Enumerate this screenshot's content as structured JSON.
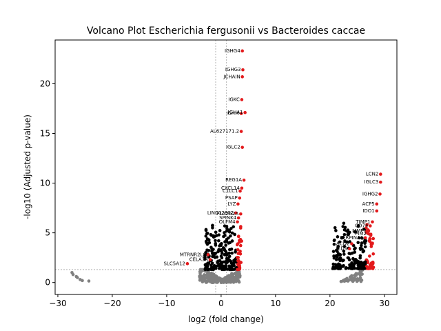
{
  "chart_data": {
    "type": "scatter",
    "title": "Volcano Plot Escherichia fergusonii vs Bacteroides caccae",
    "xlabel": "log2 (fold change)",
    "ylabel": "-log10 (Adjusted p-value)",
    "xlim": [
      -30.5,
      32.3
    ],
    "ylim": [
      -1.2,
      24.4
    ],
    "xticks": [
      -30,
      -20,
      -10,
      0,
      10,
      20,
      30
    ],
    "yticks": [
      0,
      5,
      10,
      15,
      20
    ],
    "grid": false,
    "threshold_lines": {
      "x": [
        -1,
        1
      ],
      "y": [
        1.3
      ]
    },
    "colors": {
      "significant": "#e31a1c",
      "not_significant": "#808080",
      "threshold": "#808080"
    },
    "significant_labeled": [
      {
        "label": "IGHG4",
        "x": 3.9,
        "y": 23.3
      },
      {
        "label": "IGHG3",
        "x": 4.0,
        "y": 21.4
      },
      {
        "label": "JCHAIN",
        "x": 3.9,
        "y": 20.7
      },
      {
        "label": "IGKC",
        "x": 3.8,
        "y": 18.4
      },
      {
        "label": "IGHA1",
        "x": 4.4,
        "y": 17.1
      },
      {
        "label": "IGHM",
        "x": 3.7,
        "y": 17.0
      },
      {
        "label": "AL627171.2",
        "x": 3.7,
        "y": 15.2
      },
      {
        "label": "IGLC2",
        "x": 3.9,
        "y": 13.6
      },
      {
        "label": "REG1A",
        "x": 4.2,
        "y": 10.3
      },
      {
        "label": "CXCL14",
        "x": 3.8,
        "y": 9.5
      },
      {
        "label": "C1LC1",
        "x": 3.5,
        "y": 9.2
      },
      {
        "label": "PSAP",
        "x": 3.4,
        "y": 8.5
      },
      {
        "label": "LYZ",
        "x": 3.1,
        "y": 7.9
      },
      {
        "label": "LINC02802",
        "x": 2.7,
        "y": 7.0
      },
      {
        "label": "PLA2G2A",
        "x": 3.6,
        "y": 6.9
      },
      {
        "label": "SPINK4",
        "x": 3.2,
        "y": 6.5
      },
      {
        "label": "OLFM4",
        "x": 3.0,
        "y": 6.1
      },
      {
        "label": "LCN2",
        "x": 29.3,
        "y": 10.9
      },
      {
        "label": "IGLC3",
        "x": 29.3,
        "y": 10.1
      },
      {
        "label": "IGHG2",
        "x": 29.2,
        "y": 8.9
      },
      {
        "label": "ACP5",
        "x": 28.6,
        "y": 7.9
      },
      {
        "label": "IDO1",
        "x": 28.6,
        "y": 7.2
      },
      {
        "label": "TIMP1",
        "x": 27.8,
        "y": 6.1
      },
      {
        "label": "CD74",
        "x": 27.4,
        "y": 5.7
      },
      {
        "label": "MMP7",
        "x": 27.1,
        "y": 5.2
      },
      {
        "label": "PIM2",
        "x": 27.1,
        "y": 4.9
      },
      {
        "label": "SERPINA1",
        "x": 26.5,
        "y": 4.5
      },
      {
        "label": "ACO2",
        "x": 24.0,
        "y": 3.9
      },
      {
        "label": "CD9",
        "x": 23.6,
        "y": 3.4
      },
      {
        "label": "SLC5A12",
        "x": -6.2,
        "y": 1.9
      },
      {
        "label": "MTRNR2L8",
        "x": -2.4,
        "y": 2.8
      },
      {
        "label": "CELA3A",
        "x": -2.0,
        "y": 2.3
      }
    ],
    "significant_unlabeled_summary": [
      {
        "cluster": "left-bulk",
        "x_range": [
          -3.0,
          3.8
        ],
        "y_range": [
          1.3,
          6.0
        ]
      },
      {
        "cluster": "right-bulk",
        "x_range": [
          20.5,
          28.0
        ],
        "y_range": [
          1.4,
          6.0
        ]
      }
    ],
    "not_significant_summary": [
      {
        "cluster": "center",
        "x_range": [
          -4.0,
          3.5
        ],
        "y_range": [
          0.0,
          1.3
        ]
      },
      {
        "cluster": "right",
        "x_range": [
          22.0,
          26.0
        ],
        "y_range": [
          0.1,
          1.3
        ]
      },
      {
        "cluster": "far-left",
        "points": [
          [
            -27.4,
            1.0
          ],
          [
            -27.2,
            0.8
          ],
          [
            -26.6,
            0.6
          ],
          [
            -26.4,
            0.5
          ],
          [
            -25.9,
            0.3
          ],
          [
            -25.5,
            0.2
          ],
          [
            -24.3,
            0.15
          ]
        ]
      }
    ]
  }
}
